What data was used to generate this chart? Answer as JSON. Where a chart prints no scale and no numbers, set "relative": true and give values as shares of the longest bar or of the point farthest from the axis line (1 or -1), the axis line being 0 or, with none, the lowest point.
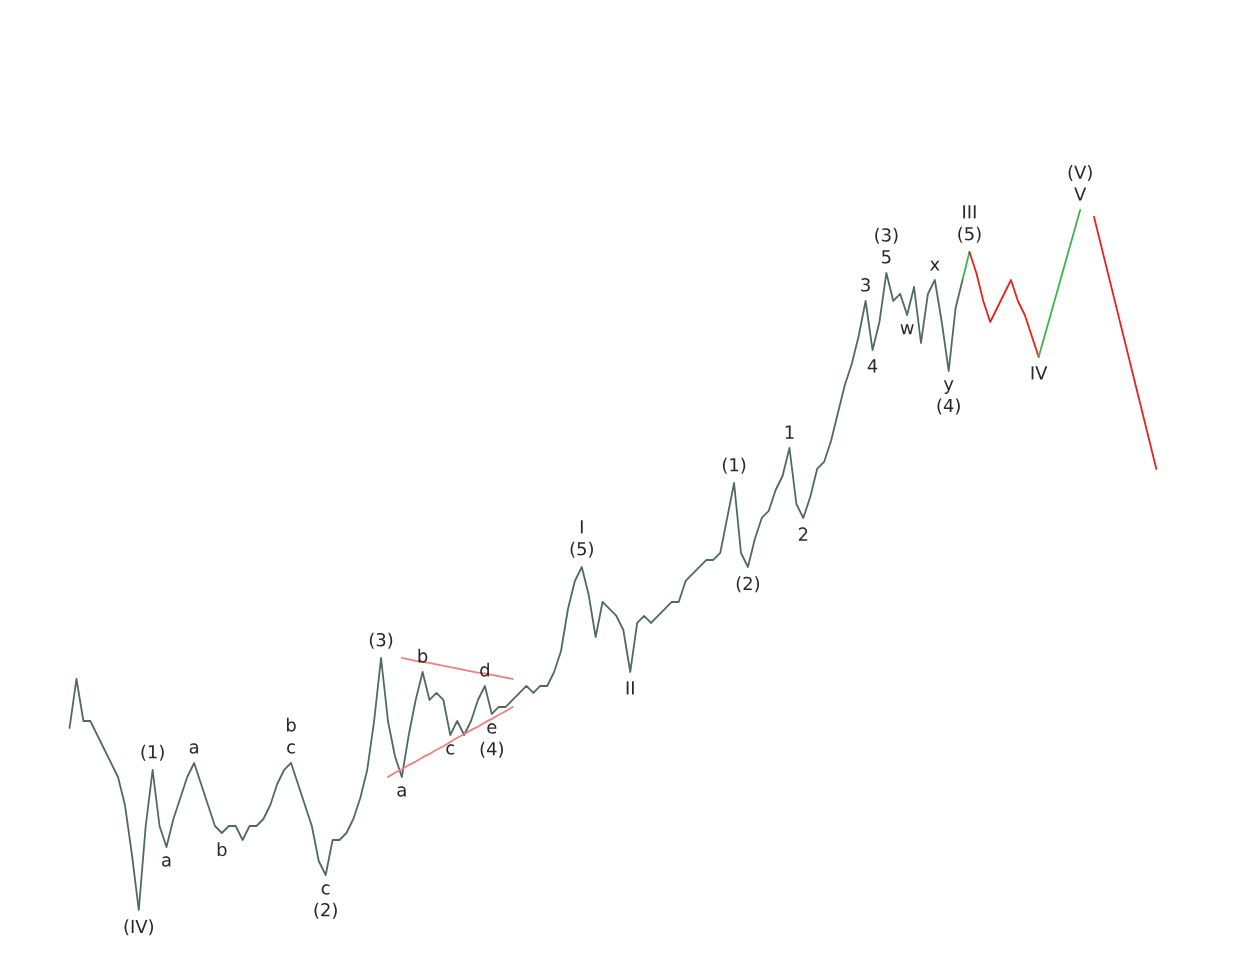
{
  "chart_data": {
    "type": "line",
    "relative": true,
    "categories": [
      null,
      null,
      null,
      null,
      null,
      null,
      null,
      null,
      null,
      null,
      null,
      null,
      null,
      null,
      null,
      null,
      null,
      null,
      null,
      null,
      null,
      null,
      null,
      null,
      null,
      null,
      null,
      null,
      null,
      null,
      null,
      null,
      null,
      null,
      null,
      null,
      null,
      null,
      null,
      null,
      null,
      null,
      null,
      null,
      null,
      null,
      null,
      null,
      null,
      null,
      null,
      null,
      null,
      null,
      null,
      null,
      null,
      null,
      null,
      null,
      null,
      null,
      null,
      null,
      null,
      null,
      null,
      null,
      null,
      null,
      null,
      null,
      null,
      null,
      null,
      null,
      null,
      null,
      null,
      null,
      null,
      null,
      null,
      null,
      null,
      null,
      null,
      null,
      null,
      null,
      null,
      null,
      null,
      null,
      null,
      null,
      null,
      null,
      null,
      null,
      null,
      null,
      null,
      null,
      null,
      null,
      null,
      null,
      null,
      null,
      null,
      null,
      null,
      null,
      null,
      null,
      null,
      null,
      null,
      null,
      null,
      null,
      null,
      null,
      null,
      null,
      null,
      null,
      null,
      null,
      null,
      null,
      null,
      null,
      null,
      null,
      null,
      null,
      null,
      null,
      null,
      null,
      null,
      null,
      null,
      null,
      null,
      null,
      null,
      null,
      null,
      null,
      null,
      null,
      null,
      null,
      null,
      null
    ],
    "series": [
      {
        "color": "#4f6b5c",
        "values": [
          0.26,
          0.33,
          0.27,
          0.27,
          0.25,
          0.23,
          0.21,
          0.19,
          0.15,
          0.08,
          0,
          0.12,
          0.2,
          0.12,
          0.09,
          0.13,
          0.16,
          0.19,
          0.21,
          0.18,
          0.15,
          0.12,
          0.11,
          0.12,
          0.12,
          0.1,
          0.12,
          0.12,
          0.13,
          0.15,
          0.18,
          0.2,
          0.21,
          0.18,
          0.15,
          0.12,
          0.07,
          0.05,
          0.1,
          0.1,
          0.11,
          0.13,
          0.16,
          0.2,
          0.27,
          0.36,
          0.27,
          0.22,
          0.19,
          0.25,
          0.3,
          0.34,
          0.3,
          0.31,
          0.3,
          0.25,
          0.27,
          0.25,
          0.27,
          0.3,
          0.32,
          0.28,
          0.29,
          0.29,
          0.3,
          0.31,
          0.32,
          0.31,
          0.32,
          0.32,
          0.34,
          0.37,
          0.43,
          0.47,
          0.49,
          0.45,
          0.39,
          0.44,
          0.43,
          0.42,
          0.4,
          0.34,
          0.41,
          0.42,
          0.41,
          0.42,
          0.43,
          0.44,
          0.44,
          0.47,
          0.48,
          0.49,
          0.5,
          0.5,
          0.51,
          0.56,
          0.61,
          0.51,
          0.49,
          0.53,
          0.56,
          0.57,
          0.6,
          0.62,
          0.66,
          0.58,
          0.56,
          0.59,
          0.63,
          0.64,
          0.67,
          0.71,
          0.75,
          0.78,
          0.82,
          0.87,
          0.8,
          0.84,
          0.91,
          0.87,
          0.88,
          0.85,
          0.89,
          0.81,
          0.88,
          0.9,
          0.84,
          0.77,
          0.86,
          0.9,
          null,
          null,
          null,
          null,
          null,
          null,
          null,
          null,
          null,
          null,
          null,
          null,
          null,
          null,
          null,
          null,
          null,
          null,
          null,
          null,
          null,
          null,
          null,
          null,
          null,
          null,
          null,
          null
        ]
      },
      {
        "color": "#f08080",
        "values": [
          null,
          null,
          null,
          null,
          null,
          null,
          null,
          null,
          null,
          null,
          null,
          null,
          null,
          null,
          null,
          null,
          null,
          null,
          null,
          null,
          null,
          null,
          null,
          null,
          null,
          null,
          null,
          null,
          null,
          null,
          null,
          null,
          null,
          null,
          null,
          null,
          null,
          null,
          null,
          null,
          null,
          null,
          null,
          null,
          null,
          null,
          0.19,
          0.196,
          0.201,
          0.207,
          0.212,
          0.218,
          0.223,
          0.229,
          0.234,
          0.24,
          0.246,
          0.251,
          0.257,
          0.262,
          0.268,
          0.273,
          0.279,
          0.284,
          0.29,
          null,
          null,
          null,
          null,
          null,
          null,
          null,
          null,
          null,
          null,
          null,
          null,
          null,
          null,
          null,
          null,
          null,
          null,
          null,
          null,
          null,
          null,
          null,
          null,
          null,
          null,
          null,
          null,
          null,
          null,
          null,
          null,
          null,
          null,
          null,
          null,
          null,
          null,
          null,
          null,
          null,
          null,
          null,
          null,
          null,
          null,
          null,
          null,
          null,
          null,
          null,
          null,
          null,
          null,
          null,
          null,
          null,
          null,
          null,
          null,
          null,
          null,
          null,
          null,
          null,
          null,
          null,
          null,
          null,
          null,
          null,
          null,
          null,
          null,
          null,
          null,
          null,
          null,
          null,
          null,
          null,
          null,
          null,
          null,
          null,
          null,
          null,
          null,
          null,
          null,
          null,
          null,
          null
        ]
      },
      {
        "color": "#f08080",
        "values": [
          null,
          null,
          null,
          null,
          null,
          null,
          null,
          null,
          null,
          null,
          null,
          null,
          null,
          null,
          null,
          null,
          null,
          null,
          null,
          null,
          null,
          null,
          null,
          null,
          null,
          null,
          null,
          null,
          null,
          null,
          null,
          null,
          null,
          null,
          null,
          null,
          null,
          null,
          null,
          null,
          null,
          null,
          null,
          null,
          null,
          null,
          null,
          null,
          0.36,
          0.358,
          0.356,
          0.354,
          0.353,
          0.351,
          0.349,
          0.347,
          0.345,
          0.343,
          0.341,
          0.339,
          0.338,
          0.336,
          0.334,
          0.332,
          0.33,
          null,
          null,
          null,
          null,
          null,
          null,
          null,
          null,
          null,
          null,
          null,
          null,
          null,
          null,
          null,
          null,
          null,
          null,
          null,
          null,
          null,
          null,
          null,
          null,
          null,
          null,
          null,
          null,
          null,
          null,
          null,
          null,
          null,
          null,
          null,
          null,
          null,
          null,
          null,
          null,
          null,
          null,
          null,
          null,
          null,
          null,
          null,
          null,
          null,
          null,
          null,
          null,
          null,
          null,
          null,
          null,
          null,
          null,
          null,
          null,
          null,
          null,
          null,
          null,
          null,
          null,
          null,
          null,
          null,
          null,
          null,
          null,
          null,
          null,
          null,
          null,
          null,
          null,
          null,
          null,
          null,
          null,
          null,
          null,
          null,
          null,
          null,
          null,
          null,
          null,
          null,
          null,
          null
        ]
      },
      {
        "color": "#3cb44b",
        "values": [
          null,
          null,
          null,
          null,
          null,
          null,
          null,
          null,
          null,
          null,
          null,
          null,
          null,
          null,
          null,
          null,
          null,
          null,
          null,
          null,
          null,
          null,
          null,
          null,
          null,
          null,
          null,
          null,
          null,
          null,
          null,
          null,
          null,
          null,
          null,
          null,
          null,
          null,
          null,
          null,
          null,
          null,
          null,
          null,
          null,
          null,
          null,
          null,
          null,
          null,
          null,
          null,
          null,
          null,
          null,
          null,
          null,
          null,
          null,
          null,
          null,
          null,
          null,
          null,
          null,
          null,
          null,
          null,
          null,
          null,
          null,
          null,
          null,
          null,
          null,
          null,
          null,
          null,
          null,
          null,
          null,
          null,
          null,
          null,
          null,
          null,
          null,
          null,
          null,
          null,
          null,
          null,
          null,
          null,
          null,
          null,
          null,
          null,
          null,
          null,
          null,
          null,
          null,
          null,
          null,
          null,
          null,
          null,
          null,
          null,
          null,
          null,
          null,
          null,
          null,
          null,
          null,
          null,
          null,
          null,
          null,
          null,
          null,
          null,
          null,
          null,
          null,
          null,
          null,
          0.9,
          0.94,
          null,
          null,
          null,
          null,
          null,
          null,
          null,
          null,
          null,
          null,
          null,
          null,
          null,
          null,
          null,
          null,
          null,
          null,
          null,
          null,
          null,
          null,
          null,
          null,
          null,
          null,
          null
        ]
      },
      {
        "color": "#e8211d",
        "values": [
          null,
          null,
          null,
          null,
          null,
          null,
          null,
          null,
          null,
          null,
          null,
          null,
          null,
          null,
          null,
          null,
          null,
          null,
          null,
          null,
          null,
          null,
          null,
          null,
          null,
          null,
          null,
          null,
          null,
          null,
          null,
          null,
          null,
          null,
          null,
          null,
          null,
          null,
          null,
          null,
          null,
          null,
          null,
          null,
          null,
          null,
          null,
          null,
          null,
          null,
          null,
          null,
          null,
          null,
          null,
          null,
          null,
          null,
          null,
          null,
          null,
          null,
          null,
          null,
          null,
          null,
          null,
          null,
          null,
          null,
          null,
          null,
          null,
          null,
          null,
          null,
          null,
          null,
          null,
          null,
          null,
          null,
          null,
          null,
          null,
          null,
          null,
          null,
          null,
          null,
          null,
          null,
          null,
          null,
          null,
          null,
          null,
          null,
          null,
          null,
          null,
          null,
          null,
          null,
          null,
          null,
          null,
          null,
          null,
          null,
          null,
          null,
          null,
          null,
          null,
          null,
          null,
          null,
          null,
          null,
          null,
          null,
          null,
          null,
          null,
          null,
          null,
          null,
          null,
          null,
          0.94,
          0.91,
          0.87,
          0.84,
          0.86,
          0.88,
          0.9,
          0.87,
          0.85,
          0.82,
          0.79,
          null,
          null,
          null,
          null,
          null,
          null,
          null,
          null,
          null,
          null,
          null,
          null,
          null,
          null,
          null,
          null,
          null
        ]
      },
      {
        "color": "#3cb44b",
        "values": [
          null,
          null,
          null,
          null,
          null,
          null,
          null,
          null,
          null,
          null,
          null,
          null,
          null,
          null,
          null,
          null,
          null,
          null,
          null,
          null,
          null,
          null,
          null,
          null,
          null,
          null,
          null,
          null,
          null,
          null,
          null,
          null,
          null,
          null,
          null,
          null,
          null,
          null,
          null,
          null,
          null,
          null,
          null,
          null,
          null,
          null,
          null,
          null,
          null,
          null,
          null,
          null,
          null,
          null,
          null,
          null,
          null,
          null,
          null,
          null,
          null,
          null,
          null,
          null,
          null,
          null,
          null,
          null,
          null,
          null,
          null,
          null,
          null,
          null,
          null,
          null,
          null,
          null,
          null,
          null,
          null,
          null,
          null,
          null,
          null,
          null,
          null,
          null,
          null,
          null,
          null,
          null,
          null,
          null,
          null,
          null,
          null,
          null,
          null,
          null,
          null,
          null,
          null,
          null,
          null,
          null,
          null,
          null,
          null,
          null,
          null,
          null,
          null,
          null,
          null,
          null,
          null,
          null,
          null,
          null,
          null,
          null,
          null,
          null,
          null,
          null,
          null,
          null,
          null,
          null,
          null,
          null,
          null,
          null,
          null,
          null,
          null,
          null,
          null,
          null,
          0.79,
          0.825,
          0.86,
          0.895,
          0.93,
          0.965,
          1.0,
          null,
          null,
          null,
          null,
          null,
          null,
          null,
          null,
          null,
          null,
          null
        ]
      },
      {
        "color": "#e8211d",
        "values": [
          null,
          null,
          null,
          null,
          null,
          null,
          null,
          null,
          null,
          null,
          null,
          null,
          null,
          null,
          null,
          null,
          null,
          null,
          null,
          null,
          null,
          null,
          null,
          null,
          null,
          null,
          null,
          null,
          null,
          null,
          null,
          null,
          null,
          null,
          null,
          null,
          null,
          null,
          null,
          null,
          null,
          null,
          null,
          null,
          null,
          null,
          null,
          null,
          null,
          null,
          null,
          null,
          null,
          null,
          null,
          null,
          null,
          null,
          null,
          null,
          null,
          null,
          null,
          null,
          null,
          null,
          null,
          null,
          null,
          null,
          null,
          null,
          null,
          null,
          null,
          null,
          null,
          null,
          null,
          null,
          null,
          null,
          null,
          null,
          null,
          null,
          null,
          null,
          null,
          null,
          null,
          null,
          null,
          null,
          null,
          null,
          null,
          null,
          null,
          null,
          null,
          null,
          null,
          null,
          null,
          null,
          null,
          null,
          null,
          null,
          null,
          null,
          null,
          null,
          null,
          null,
          null,
          null,
          null,
          null,
          null,
          null,
          null,
          null,
          null,
          null,
          null,
          null,
          null,
          null,
          null,
          null,
          null,
          null,
          null,
          null,
          null,
          null,
          null,
          null,
          null,
          null,
          null,
          null,
          null,
          null,
          null,
          null,
          0.99,
          0.95,
          0.91,
          0.87,
          0.83,
          0.79,
          0.75,
          0.71,
          0.67,
          0.63
        ]
      }
    ],
    "annotations": [
      {
        "text": "(IV)",
        "y": 0
      },
      {
        "text": "(1)",
        "y": 0.2
      },
      {
        "text": "a",
        "y": 0.09
      },
      {
        "text": "a",
        "y": 0.21
      },
      {
        "text": "b",
        "y": 0.11
      },
      {
        "text": "b c",
        "y": 0.21
      },
      {
        "text": "c (2)",
        "y": 0.05
      },
      {
        "text": "(3)",
        "y": 0.36
      },
      {
        "text": "a",
        "y": 0.19
      },
      {
        "text": "b",
        "y": 0.34
      },
      {
        "text": "c",
        "y": 0.25
      },
      {
        "text": "d",
        "y": 0.32
      },
      {
        "text": "e (4)",
        "y": 0.28
      },
      {
        "text": "I (5)",
        "y": 0.49
      },
      {
        "text": "II",
        "y": 0.34
      },
      {
        "text": "(1)",
        "y": 0.61
      },
      {
        "text": "(2)",
        "y": 0.49
      },
      {
        "text": "1",
        "y": 0.66
      },
      {
        "text": "2",
        "y": 0.56
      },
      {
        "text": "3",
        "y": 0.87
      },
      {
        "text": "4",
        "y": 0.8
      },
      {
        "text": "(3) 5",
        "y": 0.91
      },
      {
        "text": "w",
        "y": 0.85
      },
      {
        "text": "x",
        "y": 0.9
      },
      {
        "text": "y (4)",
        "y": 0.77
      },
      {
        "text": "III (5)",
        "y": 0.94
      },
      {
        "text": "IV",
        "y": 0.79
      },
      {
        "text": "(V) V",
        "y": 1.0
      }
    ]
  }
}
